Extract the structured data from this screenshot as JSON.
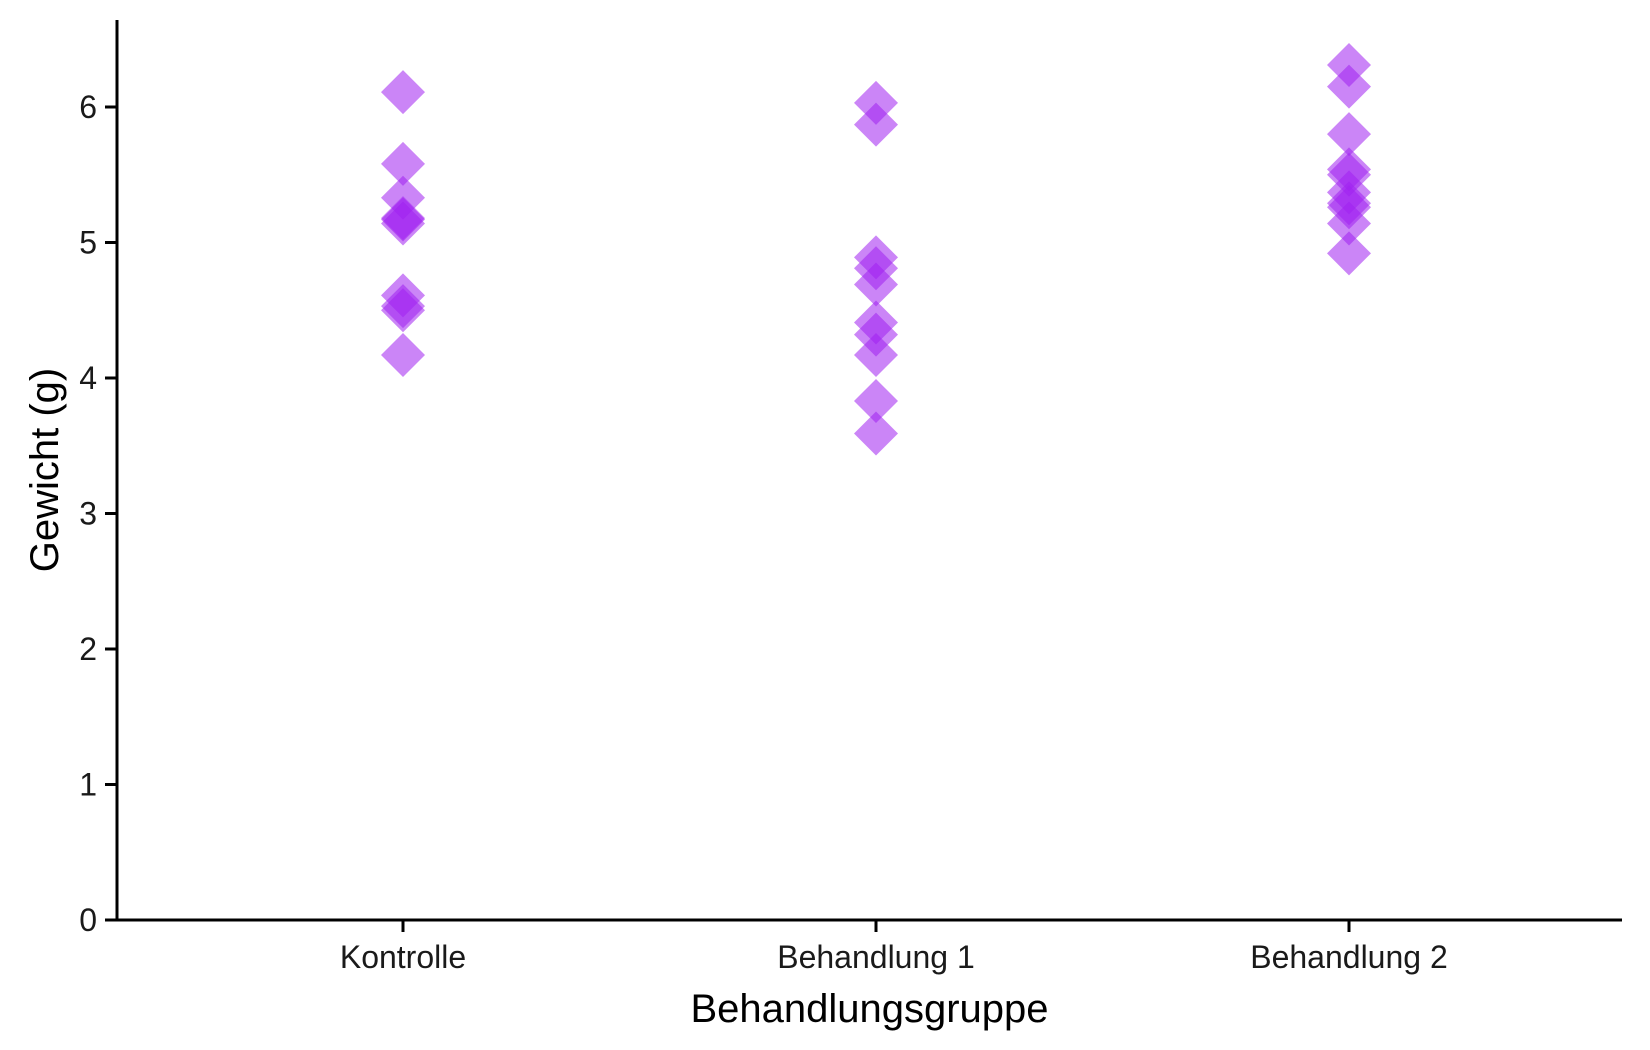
{
  "chart_data": {
    "type": "scatter",
    "title": "",
    "xlabel": "Behandlungsgruppe",
    "ylabel": "Gewicht (g)",
    "categories": [
      "Kontrolle",
      "Behandlung 1",
      "Behandlung 2"
    ],
    "ylim": [
      0,
      6.6
    ],
    "yticks": [
      0,
      1,
      2,
      3,
      4,
      5,
      6
    ],
    "grid": false,
    "legend": "none",
    "marker": "diamond",
    "point_color": "#a020f0",
    "series": [
      {
        "category": "Kontrolle",
        "values": [
          6.11,
          5.58,
          5.33,
          5.18,
          5.14,
          5.17,
          4.61,
          4.53,
          4.5,
          4.17
        ]
      },
      {
        "category": "Behandlung 1",
        "values": [
          6.03,
          5.87,
          4.89,
          4.81,
          4.69,
          4.41,
          4.32,
          4.17,
          3.83,
          3.59
        ]
      },
      {
        "category": "Behandlung 2",
        "values": [
          6.31,
          6.15,
          5.8,
          5.54,
          5.5,
          5.37,
          5.29,
          5.26,
          5.14,
          4.92
        ]
      }
    ]
  }
}
